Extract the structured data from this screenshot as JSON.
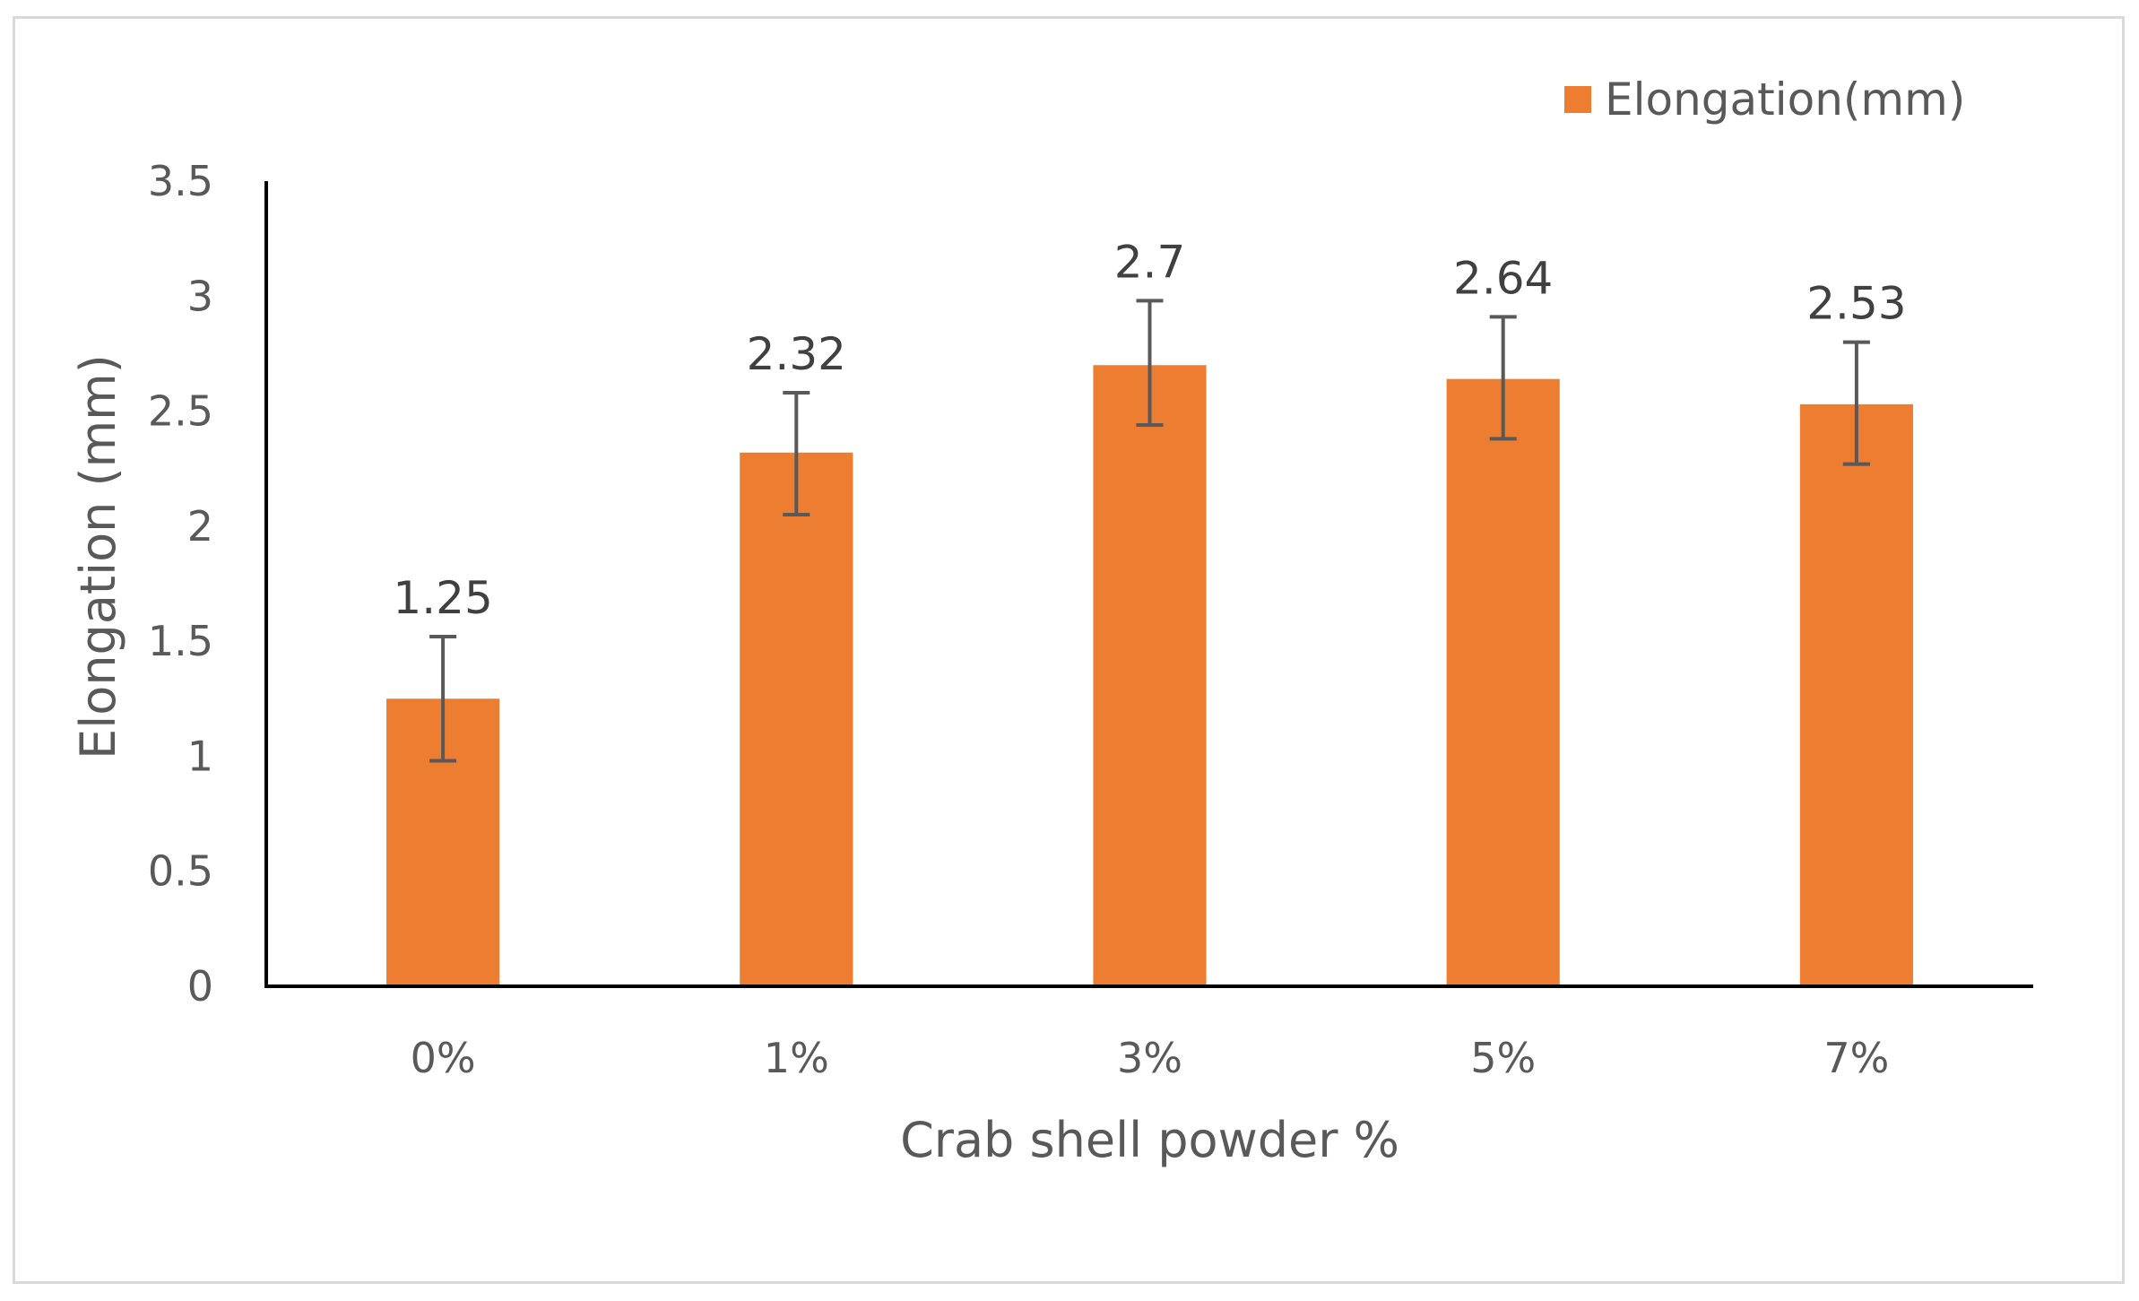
{
  "chart_data": {
    "type": "bar",
    "categories": [
      "0%",
      "1%",
      "3%",
      "5%",
      "7%"
    ],
    "series": [
      {
        "name": "Elongation(mm)",
        "values": [
          1.25,
          2.32,
          2.7,
          2.64,
          2.53
        ],
        "error_upper": [
          1.52,
          2.58,
          2.98,
          2.91,
          2.8
        ],
        "error_lower": [
          0.98,
          2.05,
          2.44,
          2.38,
          2.27
        ],
        "color": "#ed7d31"
      }
    ],
    "data_labels": [
      "1.25",
      "2.32",
      "2.7",
      "2.64",
      "2.53"
    ],
    "title": "",
    "xlabel": "Crab shell powder %",
    "ylabel": "Elongation (mm)",
    "ylim": [
      0,
      3.5
    ],
    "yticks": [
      0,
      0.5,
      1,
      1.5,
      2,
      2.5,
      3,
      3.5
    ],
    "ytick_labels": [
      "0",
      "0.5",
      "1",
      "1.5",
      "2",
      "2.5",
      "3",
      "3.5"
    ],
    "grid": false,
    "legend": "top-right"
  },
  "colors": {
    "bar": "#ed7d31",
    "axis": "#000000",
    "error_bar": "#595959",
    "text": "#595959"
  }
}
